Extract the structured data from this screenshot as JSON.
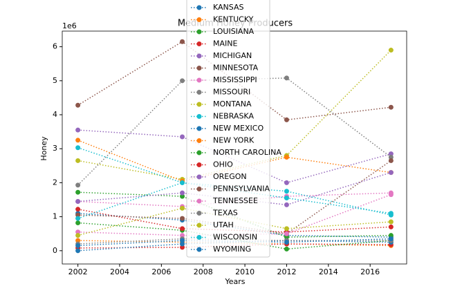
{
  "chart_data": {
    "type": "line",
    "title": "Medium Honey Producers",
    "x_label": "Years",
    "y_label": "Honey",
    "y_offset_label": "1e6",
    "x": [
      2002,
      2007,
      2012,
      2017
    ],
    "xlim": [
      2001.25,
      2017.75
    ],
    "xticks": [
      2002,
      2004,
      2006,
      2008,
      2010,
      2012,
      2014,
      2016
    ],
    "ylim": [
      -0.39,
      6.46
    ],
    "yticks": [
      0,
      1,
      2,
      3,
      4,
      5,
      6
    ],
    "series": [
      {
        "name": "KANSAS",
        "color": "#1f77b4",
        "values": [
          1.1,
          0.9,
          0.45,
          0.4
        ]
      },
      {
        "name": "KENTUCKY",
        "color": "#ff7f0e",
        "values": [
          0.3,
          0.25,
          0.2,
          0.15
        ]
      },
      {
        "name": "LOUISIANA",
        "color": "#2ca02c",
        "values": [
          1.72,
          1.6,
          0.4,
          0.45
        ]
      },
      {
        "name": "MAINE",
        "color": "#d62728",
        "values": [
          0.08,
          0.1,
          0.2,
          0.18
        ]
      },
      {
        "name": "MICHIGAN",
        "color": "#9467bd",
        "values": [
          3.55,
          3.35,
          2.0,
          2.85
        ]
      },
      {
        "name": "MINNESOTA",
        "color": "#8c564b",
        "values": [
          4.28,
          6.15,
          3.85,
          4.22
        ]
      },
      {
        "name": "MISSISSIPPI",
        "color": "#e377c2",
        "values": [
          1.45,
          1.3,
          1.6,
          1.7
        ]
      },
      {
        "name": "MISSOURI",
        "color": "#7f7f7f",
        "values": [
          1.93,
          5.0,
          5.08,
          2.75
        ]
      },
      {
        "name": "MONTANA",
        "color": "#bcbd22",
        "values": [
          2.65,
          2.1,
          2.8,
          5.9
        ]
      },
      {
        "name": "NEBRASKA",
        "color": "#17becf",
        "values": [
          3.03,
          2.0,
          1.75,
          1.05
        ]
      },
      {
        "name": "NEW MEXICO",
        "color": "#1f77b4",
        "values": [
          0.0,
          0.2,
          0.3,
          0.25
        ]
      },
      {
        "name": "NEW YORK",
        "color": "#ff7f0e",
        "values": [
          3.25,
          2.05,
          2.75,
          2.3
        ]
      },
      {
        "name": "NORTH CAROLINA",
        "color": "#2ca02c",
        "values": [
          0.82,
          0.6,
          0.05,
          0.3
        ]
      },
      {
        "name": "OHIO",
        "color": "#d62728",
        "values": [
          1.22,
          0.65,
          0.55,
          0.7
        ]
      },
      {
        "name": "OREGON",
        "color": "#9467bd",
        "values": [
          1.45,
          1.7,
          1.35,
          2.3
        ]
      },
      {
        "name": "PENNSYLVANIA",
        "color": "#8c564b",
        "values": [
          1.05,
          0.95,
          0.5,
          2.65
        ]
      },
      {
        "name": "TENNESSEE",
        "color": "#e377c2",
        "values": [
          0.55,
          0.45,
          0.5,
          1.65
        ]
      },
      {
        "name": "TEXAS",
        "color": "#7f7f7f",
        "values": [
          0.2,
          0.35,
          0.3,
          0.3
        ]
      },
      {
        "name": "UTAH",
        "color": "#bcbd22",
        "values": [
          0.45,
          1.25,
          0.65,
          0.85
        ]
      },
      {
        "name": "WISCONSIN",
        "color": "#17becf",
        "values": [
          0.95,
          2.0,
          1.55,
          1.1
        ]
      },
      {
        "name": "WYOMING",
        "color": "#1f77b4",
        "values": [
          0.15,
          0.3,
          0.25,
          0.35
        ]
      }
    ]
  }
}
